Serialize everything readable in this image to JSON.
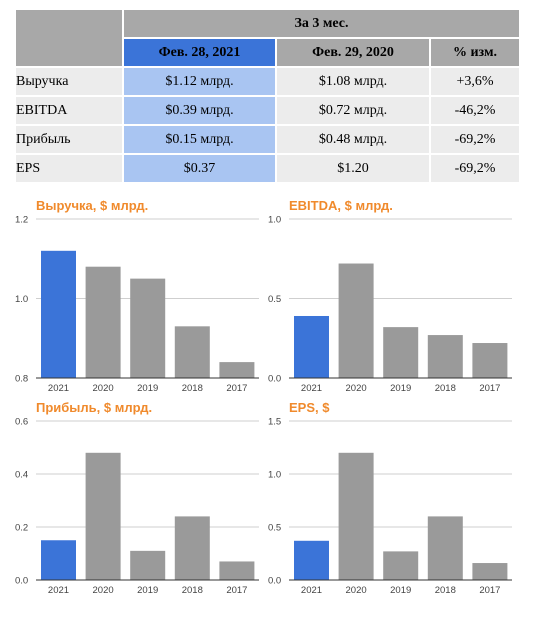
{
  "table": {
    "group_header": "За 3 мес.",
    "columns": [
      "Фев. 28, 2021",
      "Фев. 29, 2020",
      "% изм."
    ],
    "rows": [
      {
        "label": "Выручка",
        "values": [
          "$1.12 млрд.",
          "$1.08 млрд.",
          "+3,6%"
        ]
      },
      {
        "label": "EBITDA",
        "values": [
          "$0.39 млрд.",
          "$0.72 млрд.",
          "-46,2%"
        ]
      },
      {
        "label": "Прибыль",
        "values": [
          "$0.15 млрд.",
          "$0.48 млрд.",
          "-69,2%"
        ]
      },
      {
        "label": "EPS",
        "values": [
          "$0.37",
          "$1.20",
          "-69,2%"
        ]
      }
    ]
  },
  "colors": {
    "highlight": "#3b74d8",
    "bar": "#9a9a9a",
    "title": "#f08a2c",
    "header_gray": "#a8a8a8",
    "cell_highlight": "#a9c5f2",
    "cell_gray": "#ececec"
  },
  "chart_data": [
    {
      "type": "bar",
      "title": "Выручка, $ млрд.",
      "categories": [
        "2021",
        "2020",
        "2019",
        "2018",
        "2017"
      ],
      "values": [
        1.12,
        1.08,
        1.05,
        0.93,
        0.84
      ],
      "ylim": [
        0.8,
        1.2
      ],
      "yticks": [
        0.8,
        1.0,
        1.2
      ],
      "ytick_labels": [
        "0.8",
        "1.0",
        "1.2"
      ],
      "highlight_index": 0,
      "grid": true
    },
    {
      "type": "bar",
      "title": "EBITDA, $ млрд.",
      "categories": [
        "2021",
        "2020",
        "2019",
        "2018",
        "2017"
      ],
      "values": [
        0.39,
        0.72,
        0.32,
        0.27,
        0.22
      ],
      "ylim": [
        0,
        1.0
      ],
      "yticks": [
        0,
        0.5,
        1.0
      ],
      "ytick_labels": [
        "0.0",
        "0.5",
        "1.0"
      ],
      "highlight_index": 0,
      "grid": true
    },
    {
      "type": "bar",
      "title": "Прибыль, $ млрд.",
      "categories": [
        "2021",
        "2020",
        "2019",
        "2018",
        "2017"
      ],
      "values": [
        0.15,
        0.48,
        0.11,
        0.24,
        0.07
      ],
      "ylim": [
        0,
        0.6
      ],
      "yticks": [
        0,
        0.2,
        0.4,
        0.6
      ],
      "ytick_labels": [
        "0.0",
        "0.2",
        "0.4",
        "0.6"
      ],
      "highlight_index": 0,
      "grid": true
    },
    {
      "type": "bar",
      "title": "EPS, $",
      "categories": [
        "2021",
        "2020",
        "2019",
        "2018",
        "2017"
      ],
      "values": [
        0.37,
        1.2,
        0.27,
        0.6,
        0.16
      ],
      "ylim": [
        0,
        1.5
      ],
      "yticks": [
        0,
        0.5,
        1.0,
        1.5
      ],
      "ytick_labels": [
        "0.0",
        "0.5",
        "1.0",
        "1.5"
      ],
      "highlight_index": 0,
      "grid": true
    }
  ]
}
